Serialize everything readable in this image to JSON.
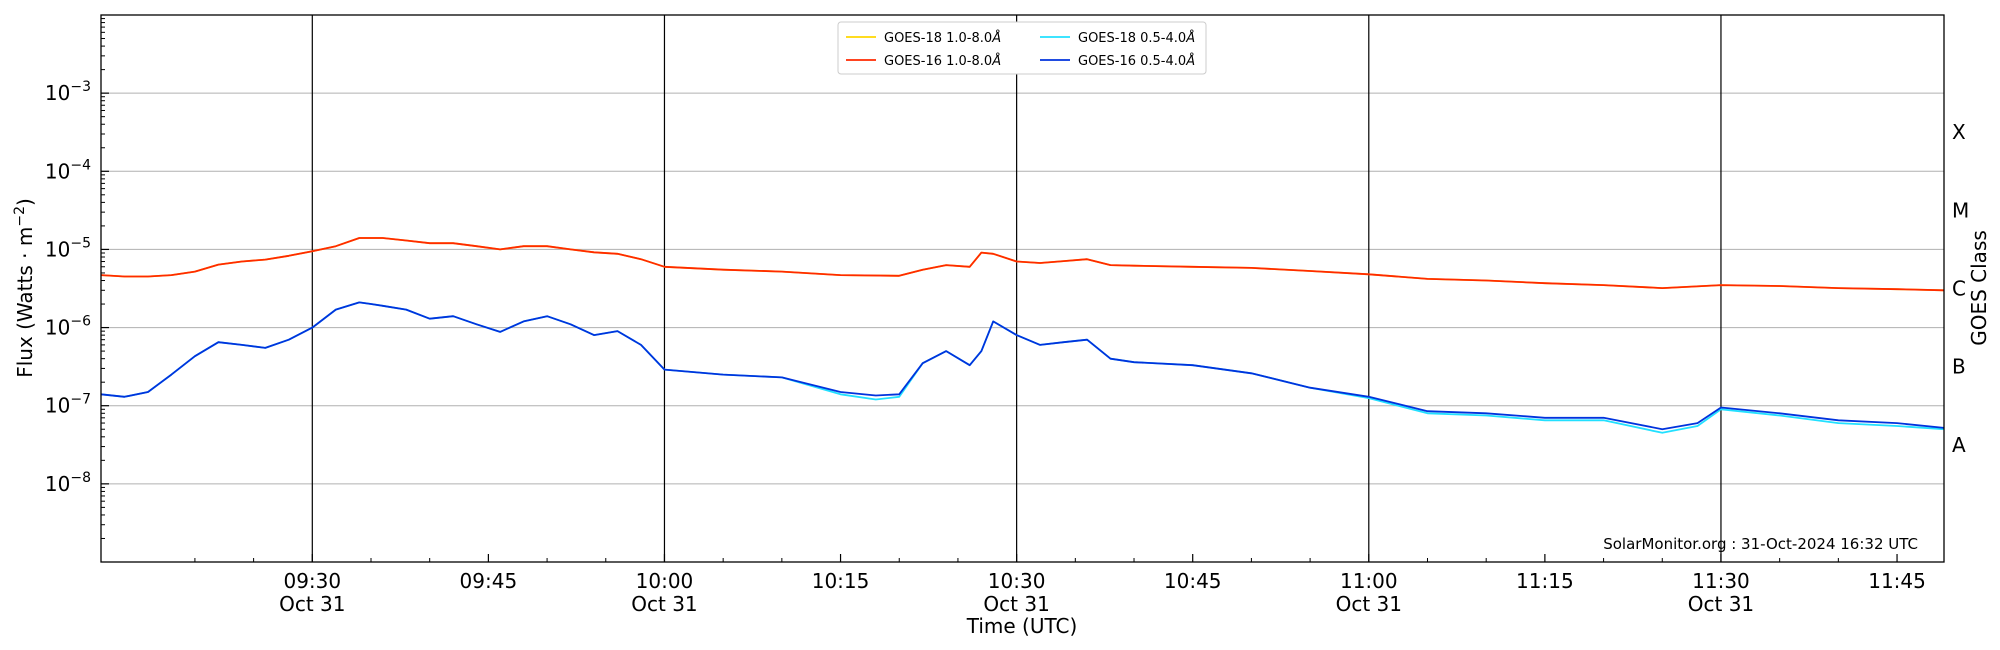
{
  "chart_data": {
    "type": "line",
    "title": "",
    "xlabel": "Time (UTC)",
    "ylabel": "Flux (Watts · m",
    "ylabel_sup": "−2",
    "ylabel_close": ")",
    "y2label": "GOES Class",
    "yscale": "log",
    "ylim": [
      1e-09,
      0.01
    ],
    "xlim": [
      "09:12",
      "11:49"
    ],
    "grid": {
      "horizontal": true,
      "vertical_major": true
    },
    "legend_position": "top-center",
    "y_ticks": [
      {
        "value": 1e-08,
        "base": "10",
        "exp": "−8"
      },
      {
        "value": 1e-07,
        "base": "10",
        "exp": "−7"
      },
      {
        "value": 1e-06,
        "base": "10",
        "exp": "−6"
      },
      {
        "value": 1e-05,
        "base": "10",
        "exp": "−5"
      },
      {
        "value": 0.0001,
        "base": "10",
        "exp": "−4"
      },
      {
        "value": 0.001,
        "base": "10",
        "exp": "−3"
      }
    ],
    "goes_classes": [
      {
        "label": "A",
        "value": 3.16e-08
      },
      {
        "label": "B",
        "value": 3.16e-07
      },
      {
        "label": "C",
        "value": 3.16e-06
      },
      {
        "label": "M",
        "value": 3.16e-05
      },
      {
        "label": "X",
        "value": 0.000316
      }
    ],
    "x_ticks": [
      {
        "time": "09:30",
        "line1": "09:30",
        "line2": "Oct 31",
        "major": true
      },
      {
        "time": "09:45",
        "line1": "09:45",
        "line2": "",
        "major": false
      },
      {
        "time": "10:00",
        "line1": "10:00",
        "line2": "Oct 31",
        "major": true
      },
      {
        "time": "10:15",
        "line1": "10:15",
        "line2": "",
        "major": false
      },
      {
        "time": "10:30",
        "line1": "10:30",
        "line2": "Oct 31",
        "major": true
      },
      {
        "time": "10:45",
        "line1": "10:45",
        "line2": "",
        "major": false
      },
      {
        "time": "11:00",
        "line1": "11:00",
        "line2": "Oct 31",
        "major": true
      },
      {
        "time": "11:15",
        "line1": "11:15",
        "line2": "",
        "major": false
      },
      {
        "time": "11:30",
        "line1": "11:30",
        "line2": "Oct 31",
        "major": true
      },
      {
        "time": "11:45",
        "line1": "11:45",
        "line2": "",
        "major": false
      }
    ],
    "legend": [
      {
        "label": "GOES-18 1.0-8.0",
        "unit": "Å",
        "color": "#ffd700",
        "series": 0
      },
      {
        "label": "GOES-18 0.5-4.0",
        "unit": "Å",
        "color": "#22e0ff",
        "series": 2
      },
      {
        "label": "GOES-16 1.0-8.0",
        "unit": "Å",
        "color": "#ff2a00",
        "series": 1
      },
      {
        "label": "GOES-16 0.5-4.0",
        "unit": "Å",
        "color": "#0033dd",
        "series": 3
      }
    ],
    "annotation": "SolarMonitor.org : 31-Oct-2024 16:32 UTC",
    "series": [
      {
        "name": "GOES-18 1.0-8.0Å",
        "color": "#ffd700",
        "x": [
          "09:12",
          "09:14",
          "09:16",
          "09:18",
          "09:20",
          "09:22",
          "09:24",
          "09:26",
          "09:28",
          "09:30",
          "09:32",
          "09:34",
          "09:35",
          "09:36",
          "09:38",
          "09:40",
          "09:42",
          "09:44",
          "09:46",
          "09:48",
          "09:50",
          "09:52",
          "09:54",
          "09:56",
          "09:58",
          "10:00",
          "10:05",
          "10:10",
          "10:15",
          "10:20",
          "10:22",
          "10:24",
          "10:26",
          "10:27",
          "10:28",
          "10:30",
          "10:32",
          "10:34",
          "10:36",
          "10:38",
          "10:40",
          "10:45",
          "10:50",
          "10:55",
          "11:00",
          "11:05",
          "11:10",
          "11:15",
          "11:20",
          "11:25",
          "11:30",
          "11:35",
          "11:40",
          "11:45",
          "11:49"
        ],
        "y": [
          4.7e-06,
          4.5e-06,
          4.5e-06,
          4.7e-06,
          5.2e-06,
          6.4e-06,
          7e-06,
          7.4e-06,
          8.3e-06,
          9.5e-06,
          1.1e-05,
          1.4e-05,
          1.4e-05,
          1.4e-05,
          1.3e-05,
          1.2e-05,
          1.2e-05,
          1.1e-05,
          1e-05,
          1.1e-05,
          1.1e-05,
          1e-05,
          9.2e-06,
          8.8e-06,
          7.5e-06,
          6e-06,
          5.5e-06,
          5.2e-06,
          4.7e-06,
          4.6e-06,
          5.5e-06,
          6.3e-06,
          6e-06,
          9.1e-06,
          8.8e-06,
          7e-06,
          6.7e-06,
          7.1e-06,
          7.5e-06,
          6.3e-06,
          6.2e-06,
          6e-06,
          5.8e-06,
          5.3e-06,
          4.8e-06,
          4.2e-06,
          4e-06,
          3.7e-06,
          3.5e-06,
          3.2e-06,
          3.5e-06,
          3.4e-06,
          3.2e-06,
          3.1e-06,
          3e-06
        ]
      },
      {
        "name": "GOES-16 1.0-8.0Å",
        "color": "#ff2a00",
        "x": [
          "09:12",
          "09:14",
          "09:16",
          "09:18",
          "09:20",
          "09:22",
          "09:24",
          "09:26",
          "09:28",
          "09:30",
          "09:32",
          "09:34",
          "09:35",
          "09:36",
          "09:38",
          "09:40",
          "09:42",
          "09:44",
          "09:46",
          "09:48",
          "09:50",
          "09:52",
          "09:54",
          "09:56",
          "09:58",
          "10:00",
          "10:05",
          "10:10",
          "10:15",
          "10:20",
          "10:22",
          "10:24",
          "10:26",
          "10:27",
          "10:28",
          "10:30",
          "10:32",
          "10:34",
          "10:36",
          "10:38",
          "10:40",
          "10:45",
          "10:50",
          "10:55",
          "11:00",
          "11:05",
          "11:10",
          "11:15",
          "11:20",
          "11:25",
          "11:30",
          "11:35",
          "11:40",
          "11:45",
          "11:49"
        ],
        "y": [
          4.7e-06,
          4.5e-06,
          4.5e-06,
          4.7e-06,
          5.2e-06,
          6.4e-06,
          7e-06,
          7.4e-06,
          8.3e-06,
          9.5e-06,
          1.1e-05,
          1.4e-05,
          1.4e-05,
          1.4e-05,
          1.3e-05,
          1.2e-05,
          1.2e-05,
          1.1e-05,
          1e-05,
          1.1e-05,
          1.1e-05,
          1e-05,
          9.2e-06,
          8.8e-06,
          7.5e-06,
          6e-06,
          5.5e-06,
          5.2e-06,
          4.7e-06,
          4.6e-06,
          5.5e-06,
          6.3e-06,
          6e-06,
          9.1e-06,
          8.8e-06,
          7e-06,
          6.7e-06,
          7.1e-06,
          7.5e-06,
          6.3e-06,
          6.2e-06,
          6e-06,
          5.8e-06,
          5.3e-06,
          4.8e-06,
          4.2e-06,
          4e-06,
          3.7e-06,
          3.5e-06,
          3.2e-06,
          3.5e-06,
          3.4e-06,
          3.2e-06,
          3.1e-06,
          3e-06
        ]
      },
      {
        "name": "GOES-18 0.5-4.0Å",
        "color": "#22e0ff",
        "x": [
          "09:12",
          "09:14",
          "09:16",
          "09:18",
          "09:20",
          "09:22",
          "09:24",
          "09:26",
          "09:28",
          "09:30",
          "09:32",
          "09:34",
          "09:35",
          "09:36",
          "09:38",
          "09:40",
          "09:42",
          "09:44",
          "09:46",
          "09:48",
          "09:50",
          "09:52",
          "09:54",
          "09:56",
          "09:58",
          "10:00",
          "10:05",
          "10:10",
          "10:15",
          "10:18",
          "10:20",
          "10:22",
          "10:24",
          "10:26",
          "10:27",
          "10:28",
          "10:30",
          "10:32",
          "10:34",
          "10:36",
          "10:38",
          "10:40",
          "10:45",
          "10:50",
          "10:55",
          "11:00",
          "11:05",
          "11:10",
          "11:15",
          "11:20",
          "11:25",
          "11:28",
          "11:30",
          "11:35",
          "11:40",
          "11:45",
          "11:49"
        ],
        "y": [
          1.4e-07,
          1.3e-07,
          1.5e-07,
          2.5e-07,
          4.3e-07,
          6.5e-07,
          6e-07,
          5.5e-07,
          7e-07,
          1e-06,
          1.7e-06,
          2.1e-06,
          2e-06,
          1.9e-06,
          1.7e-06,
          1.3e-06,
          1.4e-06,
          1.1e-06,
          8.8e-07,
          1.2e-06,
          1.4e-06,
          1.1e-06,
          8e-07,
          9e-07,
          6e-07,
          2.9e-07,
          2.5e-07,
          2.3e-07,
          1.4e-07,
          1.2e-07,
          1.3e-07,
          3.5e-07,
          5e-07,
          3.3e-07,
          5e-07,
          1.2e-06,
          8e-07,
          6e-07,
          6.5e-07,
          7e-07,
          4e-07,
          3.6e-07,
          3.3e-07,
          2.6e-07,
          1.7e-07,
          1.25e-07,
          8e-08,
          7.5e-08,
          6.5e-08,
          6.5e-08,
          4.5e-08,
          5.5e-08,
          9e-08,
          7.5e-08,
          6e-08,
          5.5e-08,
          5e-08
        ]
      },
      {
        "name": "GOES-16 0.5-4.0Å",
        "color": "#0033dd",
        "x": [
          "09:12",
          "09:14",
          "09:16",
          "09:18",
          "09:20",
          "09:22",
          "09:24",
          "09:26",
          "09:28",
          "09:30",
          "09:32",
          "09:34",
          "09:35",
          "09:36",
          "09:38",
          "09:40",
          "09:42",
          "09:44",
          "09:46",
          "09:48",
          "09:50",
          "09:52",
          "09:54",
          "09:56",
          "09:58",
          "10:00",
          "10:05",
          "10:10",
          "10:15",
          "10:18",
          "10:20",
          "10:22",
          "10:24",
          "10:26",
          "10:27",
          "10:28",
          "10:30",
          "10:32",
          "10:34",
          "10:36",
          "10:38",
          "10:40",
          "10:45",
          "10:50",
          "10:55",
          "11:00",
          "11:05",
          "11:10",
          "11:15",
          "11:20",
          "11:25",
          "11:28",
          "11:30",
          "11:35",
          "11:40",
          "11:45",
          "11:49"
        ],
        "y": [
          1.4e-07,
          1.3e-07,
          1.5e-07,
          2.5e-07,
          4.3e-07,
          6.5e-07,
          6e-07,
          5.5e-07,
          7e-07,
          1e-06,
          1.7e-06,
          2.1e-06,
          2e-06,
          1.9e-06,
          1.7e-06,
          1.3e-06,
          1.4e-06,
          1.1e-06,
          8.8e-07,
          1.2e-06,
          1.4e-06,
          1.1e-06,
          8e-07,
          9e-07,
          6e-07,
          2.9e-07,
          2.5e-07,
          2.3e-07,
          1.5e-07,
          1.35e-07,
          1.4e-07,
          3.5e-07,
          5e-07,
          3.3e-07,
          5e-07,
          1.2e-06,
          8e-07,
          6e-07,
          6.5e-07,
          7e-07,
          4e-07,
          3.6e-07,
          3.3e-07,
          2.6e-07,
          1.7e-07,
          1.3e-07,
          8.5e-08,
          8e-08,
          7e-08,
          7e-08,
          5e-08,
          6e-08,
          9.5e-08,
          8e-08,
          6.5e-08,
          6e-08,
          5.2e-08
        ]
      }
    ]
  }
}
